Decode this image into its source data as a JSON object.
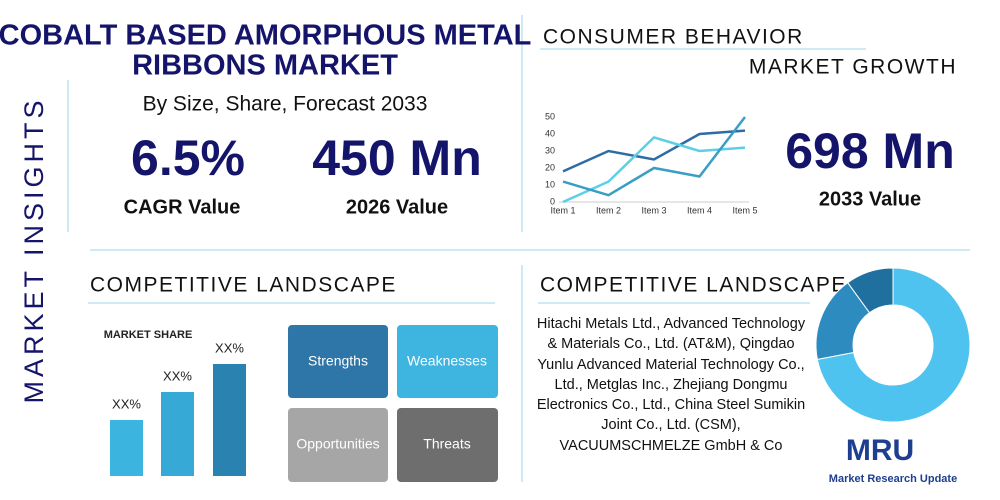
{
  "header": {
    "side_label": "MARKET INSIGHTS",
    "title": [
      "COBALT BASED AMORPHOUS METAL",
      "RIBBONS MARKET"
    ],
    "subtitle": "By Size, Share, Forecast 2033"
  },
  "stats": [
    {
      "value": "6.5%",
      "label": "CAGR Value"
    },
    {
      "value": "450 Mn",
      "label": "2026 Value"
    },
    {
      "value": "698 Mn",
      "label": "2033 Value"
    }
  ],
  "sections": {
    "consumer_behavior": "CONSUMER BEHAVIOR",
    "market_growth": "MARKET GROWTH",
    "competitive_left": "COMPETITIVE LANDSCAPE",
    "competitive_right": "COMPETITIVE LANDSCAPE"
  },
  "swot": [
    "Strengths",
    "Weaknesses",
    "Opportunities",
    "Threats"
  ],
  "companies": "Hitachi Metals Ltd., Advanced Technology & Materials Co., Ltd. (AT&M), Qingdao Yunlu Advanced Material Technology Co., Ltd., Metglas Inc., Zhejiang Dongmu Electronics Co., Ltd., China Steel Sumikin Joint Co., Ltd. (CSM), VACUUMSCHMELZE GmbH & Co",
  "logo": {
    "mark": "MRU",
    "name": "Market Research Update"
  },
  "chart_data": [
    {
      "type": "line",
      "categories": [
        "Item 1",
        "Item 2",
        "Item 3",
        "Item 4",
        "Item 5"
      ],
      "ylim": [
        0,
        50
      ],
      "yticks": [
        0,
        10,
        20,
        30,
        40,
        50
      ],
      "series": [
        {
          "color": "#2e6da4",
          "values": [
            18,
            30,
            25,
            40,
            42
          ]
        },
        {
          "color": "#5ccfe6",
          "values": [
            0,
            12,
            38,
            30,
            32
          ]
        },
        {
          "color": "#3a9ec4",
          "values": [
            12,
            4,
            20,
            15,
            50
          ]
        }
      ]
    },
    {
      "type": "bar",
      "title": "MARKET SHARE",
      "values": [
        20,
        30,
        40
      ],
      "value_labels": [
        "XX%",
        "XX%",
        "XX%"
      ],
      "colors": [
        "#3bb4df",
        "#36a9d6",
        "#2a82b0"
      ]
    },
    {
      "type": "pie",
      "values": [
        72,
        18,
        10
      ],
      "colors": [
        "#4fc3f0",
        "#2e8bc0",
        "#1f6f9f"
      ]
    }
  ]
}
